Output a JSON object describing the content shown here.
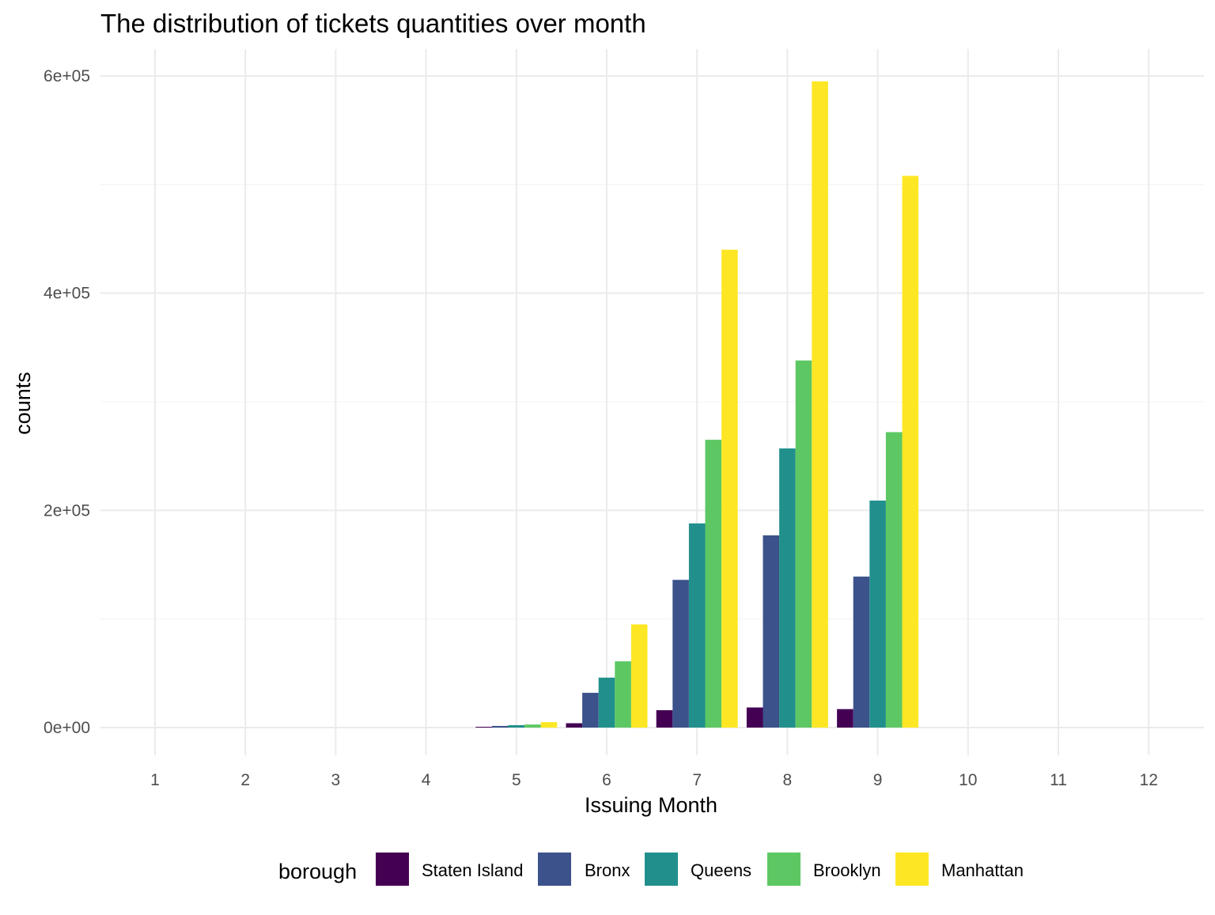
{
  "chart_data": {
    "type": "bar",
    "title": "The distribution of tickets quantities over month",
    "xlabel": "Issuing Month",
    "ylabel": "counts",
    "categories": [
      "1",
      "2",
      "3",
      "4",
      "5",
      "6",
      "7",
      "8",
      "9",
      "10",
      "11",
      "12"
    ],
    "ylim": [
      -30000,
      625000
    ],
    "y_ticks": [
      0,
      200000,
      400000,
      600000
    ],
    "y_tick_labels": [
      "0e+00",
      "2e+05",
      "4e+05",
      "6e+05"
    ],
    "grid": true,
    "legend": {
      "title": "borough",
      "position": "bottom"
    },
    "series": [
      {
        "name": "Staten Island",
        "color": "#440154",
        "values": [
          0,
          0,
          0,
          0,
          300,
          4000,
          16000,
          18500,
          17000,
          0,
          0,
          0
        ]
      },
      {
        "name": "Bronx",
        "color": "#3B528B",
        "values": [
          0,
          0,
          0,
          0,
          1500,
          32000,
          136000,
          177000,
          139000,
          0,
          0,
          0
        ]
      },
      {
        "name": "Queens",
        "color": "#21908C",
        "values": [
          0,
          0,
          0,
          0,
          2200,
          46000,
          188000,
          257000,
          209000,
          0,
          0,
          0
        ]
      },
      {
        "name": "Brooklyn",
        "color": "#5DC863",
        "values": [
          0,
          0,
          0,
          0,
          2800,
          61000,
          265000,
          338000,
          272000,
          0,
          0,
          0
        ]
      },
      {
        "name": "Manhattan",
        "color": "#FDE725",
        "values": [
          0,
          0,
          0,
          0,
          5000,
          95000,
          440000,
          595000,
          508000,
          0,
          0,
          0
        ]
      }
    ]
  }
}
